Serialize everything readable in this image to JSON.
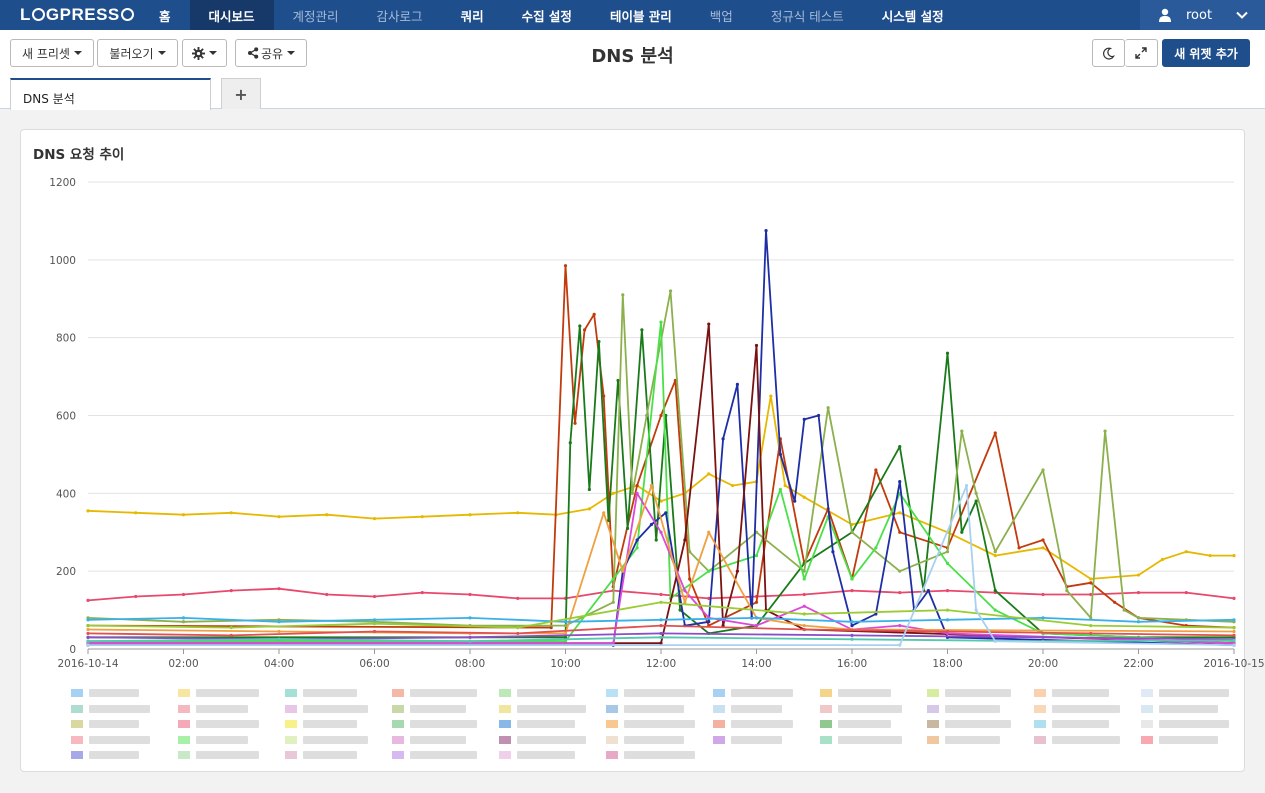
{
  "nav": {
    "logo": "LOGPRESSO",
    "items": [
      {
        "label": "홈",
        "style": "bold"
      },
      {
        "label": "대시보드",
        "style": "active"
      },
      {
        "label": "계정관리",
        "style": "dim"
      },
      {
        "label": "감사로그",
        "style": "dim"
      },
      {
        "label": "쿼리",
        "style": "bold"
      },
      {
        "label": "수집 설정",
        "style": "bold"
      },
      {
        "label": "테이블 관리",
        "style": "bold"
      },
      {
        "label": "백업",
        "style": "dim"
      },
      {
        "label": "정규식 테스트",
        "style": "dim"
      },
      {
        "label": "시스템 설정",
        "style": "bold"
      }
    ],
    "user": "root"
  },
  "toolbar": {
    "new_preset": "새 프리셋",
    "load": "불러오기",
    "share": "공유",
    "title": "DNS 분석",
    "add_widget": "새 위젯 추가"
  },
  "tabs": [
    {
      "label": "DNS 분석",
      "active": true
    }
  ],
  "panel": {
    "title": "DNS 요청 추이"
  },
  "colors": {
    "nav_bg": "#1f4e8c",
    "nav_active": "#17396a",
    "primary": "#1f4e8c"
  },
  "chart_data": {
    "type": "line",
    "title": "DNS 요청 추이",
    "xlabel": "",
    "ylabel": "",
    "ylim": [
      0,
      1200
    ],
    "yticks": [
      "0",
      "200",
      "400",
      "600",
      "800",
      "1000",
      "1200"
    ],
    "xticks": [
      {
        "hour": 0,
        "label": "2016-10-14"
      },
      {
        "hour": 2,
        "label": "02:00"
      },
      {
        "hour": 4,
        "label": "04:00"
      },
      {
        "hour": 6,
        "label": "06:00"
      },
      {
        "hour": 8,
        "label": "08:00"
      },
      {
        "hour": 10,
        "label": "10:00"
      },
      {
        "hour": 12,
        "label": "12:00"
      },
      {
        "hour": 14,
        "label": "14:00"
      },
      {
        "hour": 16,
        "label": "16:00"
      },
      {
        "hour": 18,
        "label": "18:00"
      },
      {
        "hour": 20,
        "label": "20:00"
      },
      {
        "hour": 22,
        "label": "22:00"
      },
      {
        "hour": 24,
        "label": "2016-10-15"
      }
    ],
    "xlim_hours": [
      0,
      24
    ],
    "grid": true,
    "legend": "bottom",
    "legend_labels_obscured": true,
    "series": [
      {
        "color": "#e6b800",
        "points": [
          [
            0,
            355
          ],
          [
            1,
            350
          ],
          [
            2,
            345
          ],
          [
            3,
            350
          ],
          [
            4,
            340
          ],
          [
            5,
            345
          ],
          [
            6,
            335
          ],
          [
            7,
            340
          ],
          [
            8,
            345
          ],
          [
            9,
            350
          ],
          [
            9.8,
            345
          ],
          [
            10.5,
            360
          ],
          [
            11,
            400
          ],
          [
            11.5,
            420
          ],
          [
            12,
            380
          ],
          [
            12.5,
            400
          ],
          [
            13,
            450
          ],
          [
            13.5,
            420
          ],
          [
            14,
            430
          ],
          [
            14.3,
            650
          ],
          [
            14.6,
            420
          ],
          [
            15,
            390
          ],
          [
            16,
            320
          ],
          [
            17,
            350
          ],
          [
            18,
            300
          ],
          [
            19,
            240
          ],
          [
            20,
            260
          ],
          [
            21,
            180
          ],
          [
            22,
            190
          ],
          [
            22.5,
            230
          ],
          [
            23,
            250
          ],
          [
            23.5,
            240
          ],
          [
            24,
            240
          ]
        ]
      },
      {
        "color": "#e8486b",
        "points": [
          [
            0,
            125
          ],
          [
            1,
            135
          ],
          [
            2,
            140
          ],
          [
            3,
            150
          ],
          [
            4,
            155
          ],
          [
            5,
            140
          ],
          [
            6,
            135
          ],
          [
            7,
            145
          ],
          [
            8,
            140
          ],
          [
            9,
            130
          ],
          [
            10,
            130
          ],
          [
            11,
            150
          ],
          [
            12,
            140
          ],
          [
            13,
            130
          ],
          [
            14,
            135
          ],
          [
            15,
            140
          ],
          [
            16,
            150
          ],
          [
            17,
            145
          ],
          [
            18,
            150
          ],
          [
            19,
            145
          ],
          [
            20,
            140
          ],
          [
            21,
            140
          ],
          [
            22,
            145
          ],
          [
            23,
            145
          ],
          [
            24,
            130
          ]
        ]
      },
      {
        "color": "#c23b0c",
        "points": [
          [
            0,
            60
          ],
          [
            9.7,
            55
          ],
          [
            10,
            985
          ],
          [
            10.2,
            580
          ],
          [
            10.4,
            820
          ],
          [
            10.6,
            860
          ],
          [
            10.8,
            650
          ],
          [
            11,
            160
          ],
          [
            11.5,
            420
          ],
          [
            12,
            600
          ],
          [
            12.3,
            690
          ],
          [
            12.6,
            180
          ],
          [
            13,
            60
          ],
          [
            14,
            120
          ],
          [
            14.5,
            540
          ],
          [
            15,
            220
          ],
          [
            15.5,
            360
          ],
          [
            16,
            180
          ],
          [
            16.5,
            460
          ],
          [
            17,
            300
          ],
          [
            18,
            260
          ],
          [
            19,
            555
          ],
          [
            19.5,
            260
          ],
          [
            20,
            280
          ],
          [
            20.5,
            160
          ],
          [
            21,
            170
          ],
          [
            21.5,
            120
          ],
          [
            22,
            80
          ],
          [
            23,
            60
          ],
          [
            24,
            55
          ]
        ]
      },
      {
        "color": "#1a7a1a",
        "points": [
          [
            0,
            30
          ],
          [
            10,
            30
          ],
          [
            10.1,
            530
          ],
          [
            10.3,
            830
          ],
          [
            10.5,
            410
          ],
          [
            10.7,
            790
          ],
          [
            10.9,
            330
          ],
          [
            11.1,
            690
          ],
          [
            11.3,
            310
          ],
          [
            11.6,
            820
          ],
          [
            11.9,
            280
          ],
          [
            12.1,
            600
          ],
          [
            12.4,
            100
          ],
          [
            13,
            40
          ],
          [
            14,
            60
          ],
          [
            15,
            220
          ],
          [
            16,
            300
          ],
          [
            17,
            520
          ],
          [
            17.5,
            150
          ],
          [
            18,
            760
          ],
          [
            18.3,
            300
          ],
          [
            18.6,
            380
          ],
          [
            19,
            150
          ],
          [
            20,
            40
          ],
          [
            22,
            30
          ],
          [
            24,
            30
          ]
        ]
      },
      {
        "color": "#8cb04d",
        "points": [
          [
            0,
            80
          ],
          [
            2,
            70
          ],
          [
            4,
            75
          ],
          [
            6,
            70
          ],
          [
            8,
            60
          ],
          [
            10,
            60
          ],
          [
            11,
            120
          ],
          [
            11.2,
            910
          ],
          [
            11.4,
            400
          ],
          [
            11.7,
            600
          ],
          [
            12.2,
            920
          ],
          [
            12.6,
            250
          ],
          [
            13,
            200
          ],
          [
            14,
            300
          ],
          [
            15,
            200
          ],
          [
            15.5,
            620
          ],
          [
            16,
            300
          ],
          [
            17,
            200
          ],
          [
            18,
            250
          ],
          [
            18.3,
            560
          ],
          [
            18.6,
            400
          ],
          [
            19,
            250
          ],
          [
            20,
            460
          ],
          [
            20.5,
            150
          ],
          [
            21,
            80
          ],
          [
            21.3,
            560
          ],
          [
            21.7,
            100
          ],
          [
            22,
            80
          ],
          [
            23,
            75
          ],
          [
            24,
            70
          ]
        ]
      },
      {
        "color": "#4ae04a",
        "points": [
          [
            0,
            20
          ],
          [
            10,
            20
          ],
          [
            11,
            180
          ],
          [
            11.5,
            260
          ],
          [
            12,
            840
          ],
          [
            12.2,
            130
          ],
          [
            13,
            200
          ],
          [
            14,
            240
          ],
          [
            14.5,
            410
          ],
          [
            15,
            180
          ],
          [
            15.5,
            340
          ],
          [
            16,
            180
          ],
          [
            16.5,
            260
          ],
          [
            17,
            400
          ],
          [
            18,
            220
          ],
          [
            19,
            100
          ],
          [
            20,
            40
          ],
          [
            24,
            20
          ]
        ]
      },
      {
        "color": "#1f2ea6",
        "points": [
          [
            0,
            10
          ],
          [
            11,
            10
          ],
          [
            11.2,
            200
          ],
          [
            11.5,
            280
          ],
          [
            11.8,
            320
          ],
          [
            12.1,
            350
          ],
          [
            12.5,
            60
          ],
          [
            13,
            70
          ],
          [
            13.3,
            540
          ],
          [
            13.6,
            680
          ],
          [
            13.9,
            80
          ],
          [
            14.2,
            1075
          ],
          [
            14.5,
            500
          ],
          [
            14.8,
            380
          ],
          [
            15,
            590
          ],
          [
            15.3,
            600
          ],
          [
            15.6,
            250
          ],
          [
            16,
            60
          ],
          [
            16.5,
            90
          ],
          [
            17,
            430
          ],
          [
            17.3,
            100
          ],
          [
            17.6,
            150
          ],
          [
            18,
            30
          ],
          [
            24,
            10
          ]
        ]
      },
      {
        "color": "#7a1212",
        "points": [
          [
            0,
            15
          ],
          [
            12,
            15
          ],
          [
            12.5,
            280
          ],
          [
            13,
            835
          ],
          [
            13.3,
            60
          ],
          [
            13.6,
            200
          ],
          [
            14,
            780
          ],
          [
            14.2,
            100
          ],
          [
            15,
            50
          ],
          [
            24,
            15
          ]
        ]
      },
      {
        "color": "#d94ad9",
        "points": [
          [
            0,
            15
          ],
          [
            11,
            15
          ],
          [
            11.5,
            400
          ],
          [
            12,
            300
          ],
          [
            12.5,
            150
          ],
          [
            13,
            80
          ],
          [
            14,
            60
          ],
          [
            15,
            110
          ],
          [
            16,
            50
          ],
          [
            17,
            60
          ],
          [
            18,
            40
          ],
          [
            24,
            15
          ]
        ]
      },
      {
        "color": "#f0a040",
        "points": [
          [
            0,
            50
          ],
          [
            4,
            45
          ],
          [
            8,
            40
          ],
          [
            10,
            40
          ],
          [
            10.8,
            350
          ],
          [
            11.2,
            200
          ],
          [
            11.8,
            420
          ],
          [
            12.5,
            120
          ],
          [
            13,
            300
          ],
          [
            14,
            80
          ],
          [
            15,
            60
          ],
          [
            16,
            50
          ],
          [
            24,
            45
          ]
        ]
      },
      {
        "color": "#3ab0e8",
        "points": [
          [
            0,
            75
          ],
          [
            2,
            80
          ],
          [
            4,
            70
          ],
          [
            6,
            75
          ],
          [
            8,
            80
          ],
          [
            10,
            70
          ],
          [
            12,
            75
          ],
          [
            14,
            80
          ],
          [
            16,
            70
          ],
          [
            18,
            75
          ],
          [
            20,
            80
          ],
          [
            22,
            70
          ],
          [
            24,
            75
          ]
        ]
      },
      {
        "color": "#99cc33",
        "points": [
          [
            0,
            60
          ],
          [
            3,
            55
          ],
          [
            6,
            65
          ],
          [
            9,
            55
          ],
          [
            12,
            120
          ],
          [
            15,
            90
          ],
          [
            18,
            100
          ],
          [
            21,
            60
          ],
          [
            24,
            55
          ]
        ]
      },
      {
        "color": "#e05050",
        "points": [
          [
            0,
            40
          ],
          [
            3,
            35
          ],
          [
            6,
            45
          ],
          [
            9,
            40
          ],
          [
            12,
            60
          ],
          [
            15,
            50
          ],
          [
            18,
            45
          ],
          [
            21,
            40
          ],
          [
            24,
            35
          ]
        ]
      },
      {
        "color": "#8a4ec8",
        "points": [
          [
            0,
            30
          ],
          [
            4,
            25
          ],
          [
            8,
            30
          ],
          [
            12,
            40
          ],
          [
            16,
            35
          ],
          [
            20,
            30
          ],
          [
            24,
            25
          ]
        ]
      },
      {
        "color": "#55c8b0",
        "points": [
          [
            0,
            20
          ],
          [
            4,
            25
          ],
          [
            8,
            20
          ],
          [
            12,
            30
          ],
          [
            16,
            25
          ],
          [
            20,
            20
          ],
          [
            24,
            22
          ]
        ]
      },
      {
        "color": "#a8d0f0",
        "points": [
          [
            0,
            10
          ],
          [
            17,
            10
          ],
          [
            18.4,
            420
          ],
          [
            18.6,
            100
          ],
          [
            19,
            20
          ],
          [
            24,
            10
          ]
        ]
      }
    ],
    "legend_colors": [
      "#a6d1f2",
      "#f7e6a1",
      "#a3e0d8",
      "#f4b8a8",
      "#bde8b8",
      "#b9e1f5",
      "#a8d0f5",
      "#f4d48a",
      "#d6ec9e",
      "#f9d0b0",
      "#dfeaf5",
      "#aedcd0",
      "#f4b8c0",
      "#e8c6e8",
      "#c8d8a8",
      "#f0e6a0",
      "#a8c8e8",
      "#c8e0f0",
      "#f0c8c8",
      "#d8c8e8",
      "#f8d8b8",
      "#d8e8f0",
      "#d8d8a0",
      "#f4a8b8",
      "#f8f088",
      "#a8d8b0",
      "#88b8e8",
      "#f8c890",
      "#f4b0a0",
      "#90c890",
      "#c8b8a0",
      "#b0e0f0",
      "#e8e8e8",
      "#f8b8c0",
      "#a8f0a8",
      "#e0f0c0",
      "#e8b8e0",
      "#c090b0",
      "#f0e0d0",
      "#d0a8e8",
      "#a8e0c8",
      "#f0c8a0",
      "#e8c0d0",
      "#f8a8b0",
      "#a8a8e8",
      "#c8e8c8",
      "#e8c8d8",
      "#d8b8f0",
      "#f0d0e8",
      "#e8a8c8"
    ]
  }
}
